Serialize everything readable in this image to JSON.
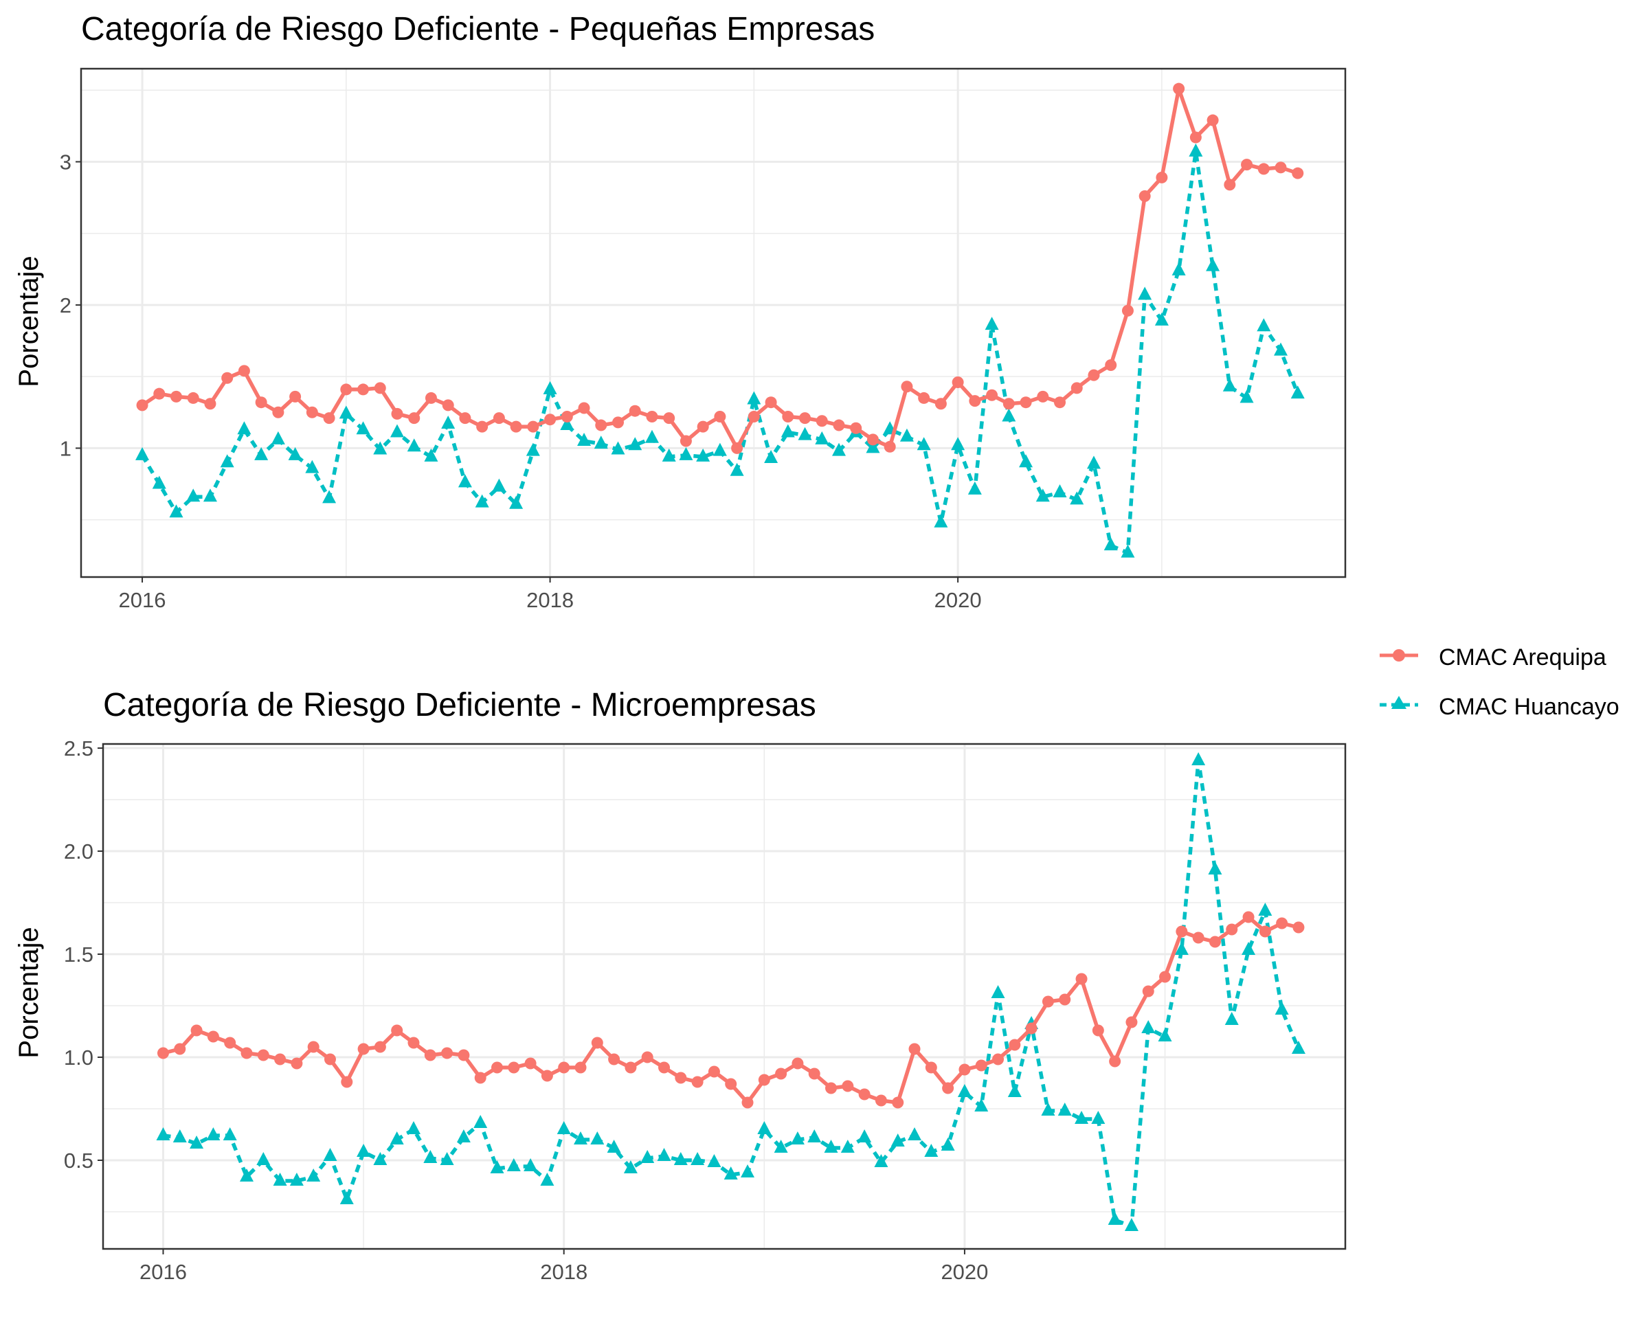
{
  "chart_data": [
    {
      "type": "line",
      "title": "Categoría de Riesgo Deficiente - Pequeñas Empresas",
      "xlabel": "",
      "ylabel": "Porcentaje",
      "x_start": "2016-01",
      "x_frequency": "monthly",
      "x_ticks": [
        2016,
        2018,
        2020
      ],
      "y_ticks": [
        1,
        2,
        3
      ],
      "xlim": [
        2015.7,
        2021.9
      ],
      "ylim": [
        0.1,
        3.65
      ],
      "grid": true,
      "legend": "right",
      "series": [
        {
          "name": "CMAC Arequipa",
          "color": "#F8766D",
          "marker": "circle",
          "line": "solid",
          "values": [
            1.3,
            1.38,
            1.36,
            1.35,
            1.31,
            1.49,
            1.54,
            1.32,
            1.25,
            1.36,
            1.25,
            1.21,
            1.41,
            1.41,
            1.42,
            1.24,
            1.21,
            1.35,
            1.3,
            1.21,
            1.15,
            1.21,
            1.15,
            1.15,
            1.2,
            1.22,
            1.28,
            1.16,
            1.18,
            1.26,
            1.22,
            1.21,
            1.05,
            1.15,
            1.22,
            1.0,
            1.22,
            1.32,
            1.22,
            1.21,
            1.19,
            1.16,
            1.14,
            1.06,
            1.01,
            1.43,
            1.35,
            1.31,
            1.46,
            1.33,
            1.37,
            1.31,
            1.32,
            1.36,
            1.32,
            1.42,
            1.51,
            1.58,
            1.96,
            2.76,
            2.89,
            3.51,
            3.17,
            3.29,
            2.84,
            2.98,
            2.95,
            2.96,
            2.92
          ]
        },
        {
          "name": "CMAC Huancayo",
          "color": "#00BFC4",
          "marker": "triangle",
          "line": "dashed",
          "values": [
            0.95,
            0.75,
            0.55,
            0.66,
            0.66,
            0.9,
            1.13,
            0.95,
            1.06,
            0.95,
            0.86,
            0.65,
            1.24,
            1.13,
            0.99,
            1.11,
            1.01,
            0.94,
            1.17,
            0.76,
            0.62,
            0.73,
            0.61,
            0.98,
            1.41,
            1.16,
            1.05,
            1.03,
            0.99,
            1.02,
            1.07,
            0.94,
            0.95,
            0.94,
            0.98,
            0.84,
            1.34,
            0.93,
            1.11,
            1.09,
            1.06,
            0.98,
            1.11,
            1.0,
            1.13,
            1.08,
            1.02,
            0.48,
            1.02,
            0.71,
            1.86,
            1.22,
            0.9,
            0.66,
            0.69,
            0.64,
            0.89,
            0.32,
            0.27,
            2.07,
            1.89,
            2.24,
            3.07,
            2.27,
            1.43,
            1.35,
            1.85,
            1.68,
            1.38
          ]
        }
      ]
    },
    {
      "type": "line",
      "title": "Categoría de Riesgo Deficiente - Microempresas",
      "xlabel": "",
      "ylabel": "Porcentaje",
      "x_start": "2016-01",
      "x_frequency": "monthly",
      "x_ticks": [
        2016,
        2018,
        2020
      ],
      "y_ticks": [
        0.5,
        1.0,
        1.5,
        2.0,
        2.5
      ],
      "xlim": [
        2015.7,
        2021.9
      ],
      "ylim": [
        0.07,
        2.52
      ],
      "grid": true,
      "legend": "right",
      "series": [
        {
          "name": "CMAC Arequipa",
          "color": "#F8766D",
          "marker": "circle",
          "line": "solid",
          "values": [
            1.02,
            1.04,
            1.13,
            1.1,
            1.07,
            1.02,
            1.01,
            0.99,
            0.97,
            1.05,
            0.99,
            0.88,
            1.04,
            1.05,
            1.13,
            1.07,
            1.01,
            1.02,
            1.01,
            0.9,
            0.95,
            0.95,
            0.97,
            0.91,
            0.95,
            0.95,
            1.07,
            0.99,
            0.95,
            1.0,
            0.95,
            0.9,
            0.88,
            0.93,
            0.87,
            0.78,
            0.89,
            0.92,
            0.97,
            0.92,
            0.85,
            0.86,
            0.82,
            0.79,
            0.78,
            1.04,
            0.95,
            0.85,
            0.94,
            0.96,
            0.99,
            1.06,
            1.14,
            1.27,
            1.28,
            1.38,
            1.13,
            0.98,
            1.17,
            1.32,
            1.39,
            1.61,
            1.58,
            1.56,
            1.62,
            1.68,
            1.61,
            1.65,
            1.63
          ]
        },
        {
          "name": "CMAC Huancayo",
          "color": "#00BFC4",
          "marker": "triangle",
          "line": "dashed",
          "values": [
            0.62,
            0.61,
            0.58,
            0.62,
            0.62,
            0.42,
            0.5,
            0.4,
            0.4,
            0.42,
            0.52,
            0.31,
            0.54,
            0.5,
            0.6,
            0.65,
            0.51,
            0.5,
            0.61,
            0.68,
            0.46,
            0.47,
            0.47,
            0.4,
            0.65,
            0.6,
            0.6,
            0.56,
            0.46,
            0.51,
            0.52,
            0.5,
            0.5,
            0.49,
            0.43,
            0.44,
            0.65,
            0.56,
            0.6,
            0.61,
            0.56,
            0.56,
            0.61,
            0.49,
            0.59,
            0.62,
            0.54,
            0.57,
            0.83,
            0.76,
            1.31,
            0.83,
            1.16,
            0.74,
            0.74,
            0.7,
            0.7,
            0.21,
            0.18,
            1.14,
            1.1,
            1.52,
            2.44,
            1.91,
            1.18,
            1.52,
            1.71,
            1.23,
            1.04
          ]
        }
      ]
    }
  ],
  "legend": {
    "items": [
      {
        "label": "CMAC Arequipa",
        "color": "#F8766D",
        "marker": "circle",
        "line": "solid"
      },
      {
        "label": "CMAC Huancayo",
        "color": "#00BFC4",
        "marker": "triangle",
        "line": "dashed"
      }
    ]
  }
}
